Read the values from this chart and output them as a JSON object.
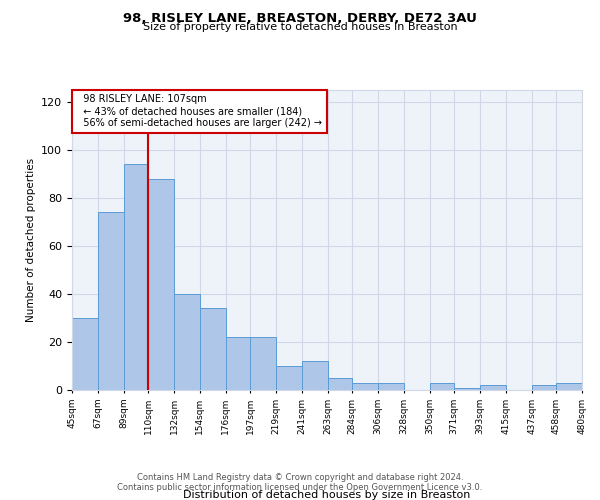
{
  "title": "98, RISLEY LANE, BREASTON, DERBY, DE72 3AU",
  "subtitle": "Size of property relative to detached houses in Breaston",
  "xlabel": "Distribution of detached houses by size in Breaston",
  "ylabel": "Number of detached properties",
  "footnote1": "Contains HM Land Registry data © Crown copyright and database right 2024.",
  "footnote2": "Contains public sector information licensed under the Open Government Licence v3.0.",
  "bins": [
    45,
    67,
    89,
    110,
    132,
    154,
    176,
    197,
    219,
    241,
    263,
    284,
    306,
    328,
    350,
    371,
    393,
    415,
    437,
    458,
    480
  ],
  "bin_labels": [
    "45sqm",
    "67sqm",
    "89sqm",
    "110sqm",
    "132sqm",
    "154sqm",
    "176sqm",
    "197sqm",
    "219sqm",
    "241sqm",
    "263sqm",
    "284sqm",
    "306sqm",
    "328sqm",
    "350sqm",
    "371sqm",
    "393sqm",
    "415sqm",
    "437sqm",
    "458sqm",
    "480sqm"
  ],
  "counts": [
    30,
    74,
    94,
    88,
    40,
    34,
    22,
    22,
    10,
    12,
    5,
    3,
    3,
    0,
    3,
    1,
    2,
    0,
    2,
    3
  ],
  "bar_color": "#aec6e8",
  "bar_edge_color": "#5b9bd5",
  "property_line_x": 110,
  "property_line_color": "#cc0000",
  "annotation_line1": "98 RISLEY LANE: 107sqm",
  "annotation_line2": "← 43% of detached houses are smaller (184)",
  "annotation_line3": "56% of semi-detached houses are larger (242) →",
  "annotation_box_color": "#cc0000",
  "ylim": [
    0,
    125
  ],
  "yticks": [
    0,
    20,
    40,
    60,
    80,
    100,
    120
  ],
  "grid_color": "#d0d8e8",
  "bg_color": "#eef2f9"
}
